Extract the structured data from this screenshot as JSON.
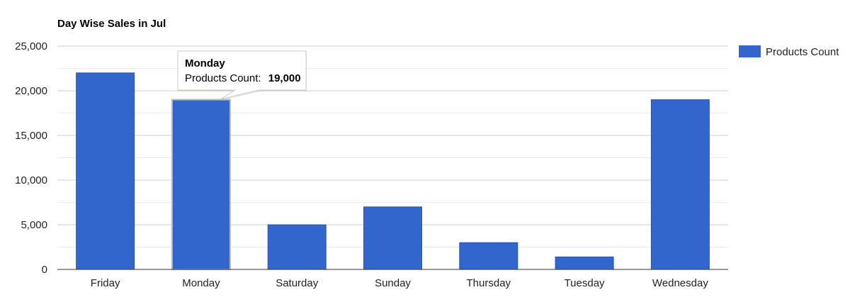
{
  "chart_data": {
    "type": "bar",
    "title": "Day Wise Sales in Jul",
    "xlabel": "",
    "ylabel": "",
    "categories": [
      "Friday",
      "Monday",
      "Saturday",
      "Sunday",
      "Thursday",
      "Tuesday",
      "Wednesday"
    ],
    "series": [
      {
        "name": "Products Count",
        "values": [
          22000,
          19000,
          5000,
          7000,
          3000,
          1400,
          19000
        ],
        "color": "#3366cc"
      }
    ],
    "ylim": [
      0,
      25000
    ],
    "yticks": [
      "0",
      "5,000",
      "10,000",
      "15,000",
      "20,000",
      "25,000"
    ],
    "grid": true,
    "legend_position": "right",
    "tooltip": {
      "category": "Monday",
      "series_label": "Products Count:",
      "value": "19,000"
    }
  }
}
